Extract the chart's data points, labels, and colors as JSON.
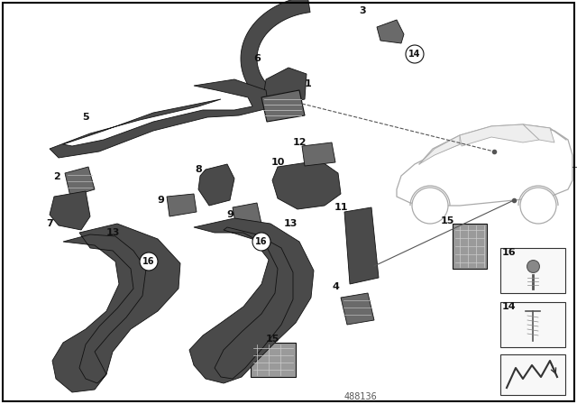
{
  "background_color": "#ffffff",
  "border_color": "#000000",
  "diagram_number": "488136",
  "dark_part": "#4a4a4a",
  "mid_part": "#6a6a6a",
  "lite_part": "#9a9a9a",
  "label_fs": 8,
  "small_label_fs": 7
}
